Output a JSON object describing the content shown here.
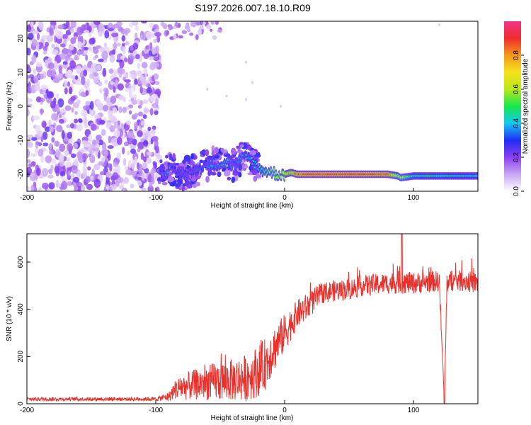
{
  "title": "S197.2026.007.18.10.R09",
  "chart_data": [
    {
      "type": "heatmap",
      "name": "spectrogram",
      "xlabel": "Height of straight line (km)",
      "ylabel": "Frequency (Hz)",
      "xlim": [
        -200,
        150
      ],
      "ylim": [
        -25,
        25
      ],
      "xticks": [
        -200,
        -100,
        0,
        100
      ],
      "yticks": [
        20,
        10,
        0,
        -10,
        -20
      ],
      "noise_region_x": [
        -200,
        -97
      ],
      "signal_track": {
        "x": [
          -97,
          -90,
          -80,
          -70,
          -60,
          -50,
          -45,
          -40,
          -35,
          -30,
          -25,
          -20,
          -15,
          -10,
          -5,
          0,
          5,
          10,
          20,
          40,
          60,
          80,
          88,
          90,
          100,
          120,
          150
        ],
        "freq": [
          -20,
          -18.5,
          -20,
          -19,
          -17,
          -17,
          -16.5,
          -17.5,
          -16,
          -15,
          -16,
          -18.5,
          -19,
          -19.5,
          -20,
          -20,
          -19.5,
          -20,
          -20,
          -20,
          -20,
          -20,
          -20.5,
          -21,
          -20.5,
          -20.5,
          -20.5
        ],
        "amplitude": [
          0.3,
          0.35,
          0.3,
          0.3,
          0.35,
          0.35,
          0.4,
          0.3,
          0.35,
          0.4,
          0.4,
          0.45,
          0.5,
          0.55,
          0.6,
          0.7,
          0.75,
          0.85,
          0.9,
          0.9,
          0.9,
          0.85,
          0.6,
          0.6,
          0.45,
          0.45,
          0.4
        ]
      }
    },
    {
      "type": "colorbar",
      "name": "amplitude-scale",
      "label": "Normalized spectral amplitude",
      "range": [
        0.0,
        1.0
      ],
      "ticks": [
        "0.0",
        "0.2",
        "0.4",
        "0.6",
        "0.8"
      ],
      "stops": [
        "#ffffff",
        "#c9a6f2",
        "#8c3ff0",
        "#1f2ef5",
        "#14c8f0",
        "#16e84a",
        "#b8e81a",
        "#f5e21b",
        "#f39a1a",
        "#ef2c2c",
        "#f2338a"
      ]
    },
    {
      "type": "line",
      "name": "snr",
      "xlabel": "Height of straight line (km)",
      "ylabel": "SNR (10 * v/v)",
      "xlim": [
        -200,
        150
      ],
      "ylim": [
        0,
        720
      ],
      "xticks": [
        -200,
        -100,
        0,
        100
      ],
      "yticks": [
        0,
        200,
        400,
        600
      ],
      "color": "#e8312c",
      "x": [
        -200,
        -180,
        -160,
        -140,
        -120,
        -100,
        -90,
        -85,
        -80,
        -70,
        -60,
        -50,
        -40,
        -30,
        -20,
        -15,
        -10,
        -5,
        0,
        5,
        10,
        15,
        20,
        25,
        30,
        40,
        50,
        60,
        70,
        80,
        90,
        100,
        110,
        120,
        124,
        126,
        130,
        140,
        150
      ],
      "mean": [
        20,
        20,
        20,
        20,
        20,
        20,
        30,
        60,
        70,
        80,
        90,
        95,
        100,
        110,
        140,
        170,
        220,
        260,
        300,
        340,
        380,
        400,
        420,
        450,
        470,
        480,
        485,
        500,
        505,
        510,
        515,
        510,
        515,
        520,
        5,
        515,
        520,
        520,
        510
      ],
      "spread": [
        8,
        8,
        8,
        8,
        8,
        8,
        20,
        40,
        55,
        65,
        75,
        85,
        90,
        100,
        110,
        110,
        100,
        90,
        80,
        70,
        60,
        60,
        55,
        50,
        45,
        45,
        45,
        45,
        45,
        45,
        50,
        45,
        45,
        45,
        0,
        45,
        45,
        45,
        45
      ],
      "peak": {
        "x": 91,
        "y": 720
      },
      "dip": {
        "x": 124,
        "y": 0
      }
    }
  ]
}
